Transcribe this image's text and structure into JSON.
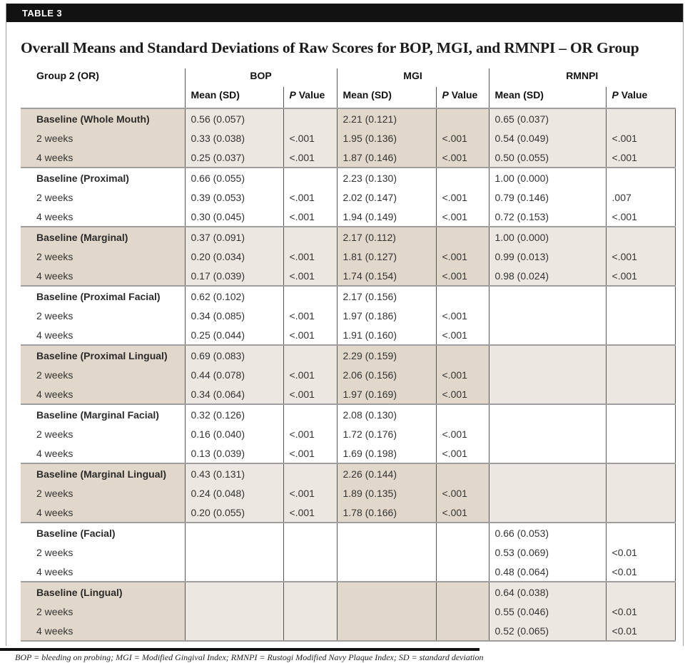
{
  "tag": "TABLE 3",
  "title": "Overall Means and Standard Deviations of Raw Scores for BOP, MGI, and RMNPI – OR Group",
  "colors": {
    "tag_bar": "#121212",
    "shade_dark": "#e1d7cb",
    "shade_light": "#ece8e1",
    "rule_gray": "#9e9e9e"
  },
  "table": {
    "header": {
      "row_group_label": "Group 2 (OR)",
      "groups": [
        {
          "label": "BOP"
        },
        {
          "label": "MGI"
        },
        {
          "label": "RMNPI"
        }
      ],
      "mean_label": "Mean (SD)",
      "p_label_italic": "P",
      "p_label_rest": " Value"
    },
    "blocks": [
      {
        "rows": [
          [
            "Baseline (Whole Mouth)",
            "0.56 (0.057)",
            "",
            "2.21 (0.121)",
            "",
            "0.65 (0.037)",
            ""
          ],
          [
            "2 weeks",
            "0.33 (0.038)",
            "<.001",
            "1.95 (0.136)",
            "<.001",
            "0.54 (0.049)",
            "<.001"
          ],
          [
            "4 weeks",
            "0.25 (0.037)",
            "<.001",
            "1.87 (0.146)",
            "<.001",
            "0.50 (0.055)",
            "<.001"
          ]
        ]
      },
      {
        "rows": [
          [
            "Baseline (Proximal)",
            "0.66 (0.055)",
            "",
            "2.23 (0.130)",
            "",
            "1.00 (0.000)",
            ""
          ],
          [
            "2 weeks",
            "0.39 (0.053)",
            "<.001",
            "2.02 (0.147)",
            "<.001",
            "0.79 (0.146)",
            ".007"
          ],
          [
            "4 weeks",
            "0.30 (0.045)",
            "<.001",
            "1.94 (0.149)",
            "<.001",
            "0.72 (0.153)",
            "<.001"
          ]
        ]
      },
      {
        "rows": [
          [
            "Baseline (Marginal)",
            "0.37 (0.091)",
            "",
            "2.17 (0.112)",
            "",
            "1.00 (0.000)",
            ""
          ],
          [
            "2 weeks",
            "0.20 (0.034)",
            "<.001",
            "1.81 (0.127)",
            "<.001",
            "0.99 (0.013)",
            "<.001"
          ],
          [
            "4 weeks",
            "0.17 (0.039)",
            "<.001",
            "1.74 (0.154)",
            "<.001",
            "0.98 (0.024)",
            "<.001"
          ]
        ]
      },
      {
        "rows": [
          [
            "Baseline (Proximal Facial)",
            "0.62 (0.102)",
            "",
            "2.17 (0.156)",
            "",
            "",
            ""
          ],
          [
            "2 weeks",
            "0.34 (0.085)",
            "<.001",
            "1.97 (0.186)",
            "<.001",
            "",
            ""
          ],
          [
            "4 weeks",
            "0.25 (0.044)",
            "<.001",
            "1.91 (0.160)",
            "<.001",
            "",
            ""
          ]
        ]
      },
      {
        "rows": [
          [
            "Baseline (Proximal Lingual)",
            "0.69 (0.083)",
            "",
            "2.29 (0.159)",
            "",
            "",
            ""
          ],
          [
            "2 weeks",
            "0.44 (0.078)",
            "<.001",
            "2.06 (0.156)",
            "<.001",
            "",
            ""
          ],
          [
            "4 weeks",
            "0.34 (0.064)",
            "<.001",
            "1.97 (0.169)",
            "<.001",
            "",
            ""
          ]
        ]
      },
      {
        "rows": [
          [
            "Baseline (Marginal Facial)",
            "0.32 (0.126)",
            "",
            "2.08 (0.130)",
            "",
            "",
            ""
          ],
          [
            "2 weeks",
            "0.16 (0.040)",
            "<.001",
            "1.72 (0.176)",
            "<.001",
            "",
            ""
          ],
          [
            "4 weeks",
            "0.13 (0.039)",
            "<.001",
            "1.69 (0.198)",
            "<.001",
            "",
            ""
          ]
        ]
      },
      {
        "rows": [
          [
            "Baseline (Marginal Lingual)",
            "0.43 (0.131)",
            "",
            "2.26 (0.144)",
            "",
            "",
            ""
          ],
          [
            "2 weeks",
            "0.24 (0.048)",
            "<.001",
            "1.89 (0.135)",
            "<.001",
            "",
            ""
          ],
          [
            "4 weeks",
            "0.20 (0.055)",
            "<.001",
            "1.78 (0.166)",
            "<.001",
            "",
            ""
          ]
        ]
      },
      {
        "rows": [
          [
            "Baseline (Facial)",
            "",
            "",
            "",
            "",
            "0.66 (0.053)",
            ""
          ],
          [
            "2 weeks",
            "",
            "",
            "",
            "",
            "0.53 (0.069)",
            "<0.01"
          ],
          [
            "4 weeks",
            "",
            "",
            "",
            "",
            "0.48 (0.064)",
            "<0.01"
          ]
        ]
      },
      {
        "rows": [
          [
            "Baseline (Lingual)",
            "",
            "",
            "",
            "",
            "0.64 (0.038)",
            ""
          ],
          [
            "2 weeks",
            "",
            "",
            "",
            "",
            "0.55 (0.046)",
            "<0.01"
          ],
          [
            "4 weeks",
            "",
            "",
            "",
            "",
            "0.52 (0.065)",
            "<0.01"
          ]
        ]
      }
    ]
  },
  "footnote": "BOP = bleeding on probing; MGI = Modified Gingival Index; RMNPI = Rustogi Modified Navy Plaque Index; SD = standard deviation"
}
